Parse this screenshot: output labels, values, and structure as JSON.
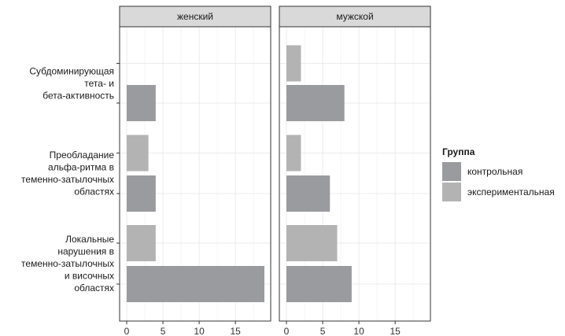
{
  "chart_data": {
    "type": "bar",
    "orientation": "horizontal",
    "facet_by": "sex",
    "facets": [
      "женский",
      "мужской"
    ],
    "categories": [
      "Субдоминирующая тета- и бета-активность",
      "Преобладание альфа-ритма в теменно-затылочных областях",
      "Локальные нарушения в теменно-затылочных и височных областях"
    ],
    "category_lines": [
      [
        "Субдоминирующая",
        "тета- и",
        "бета-активность"
      ],
      [
        "Преобладание",
        "альфа-ритма в",
        "теменно-затылочных",
        "областях"
      ],
      [
        "Локальные",
        "нарушения в",
        "теменно-затылочных",
        "и височных",
        "областях"
      ]
    ],
    "series": [
      {
        "name": "контрольная",
        "color": "#999b9e",
        "values": {
          "женский": [
            4,
            4,
            19
          ],
          "мужской": [
            8,
            6,
            9
          ]
        }
      },
      {
        "name": "экспериментальная",
        "color": "#b3b3b3",
        "values": {
          "женский": [
            0,
            3,
            4
          ],
          "мужской": [
            2,
            2,
            7
          ]
        }
      }
    ],
    "xlim": [
      0,
      20
    ],
    "x_ticks": [
      0,
      5,
      10,
      15
    ],
    "xlabel": "",
    "ylabel": "",
    "grid": true,
    "legend": {
      "title": "Группа",
      "placement": "right"
    }
  }
}
